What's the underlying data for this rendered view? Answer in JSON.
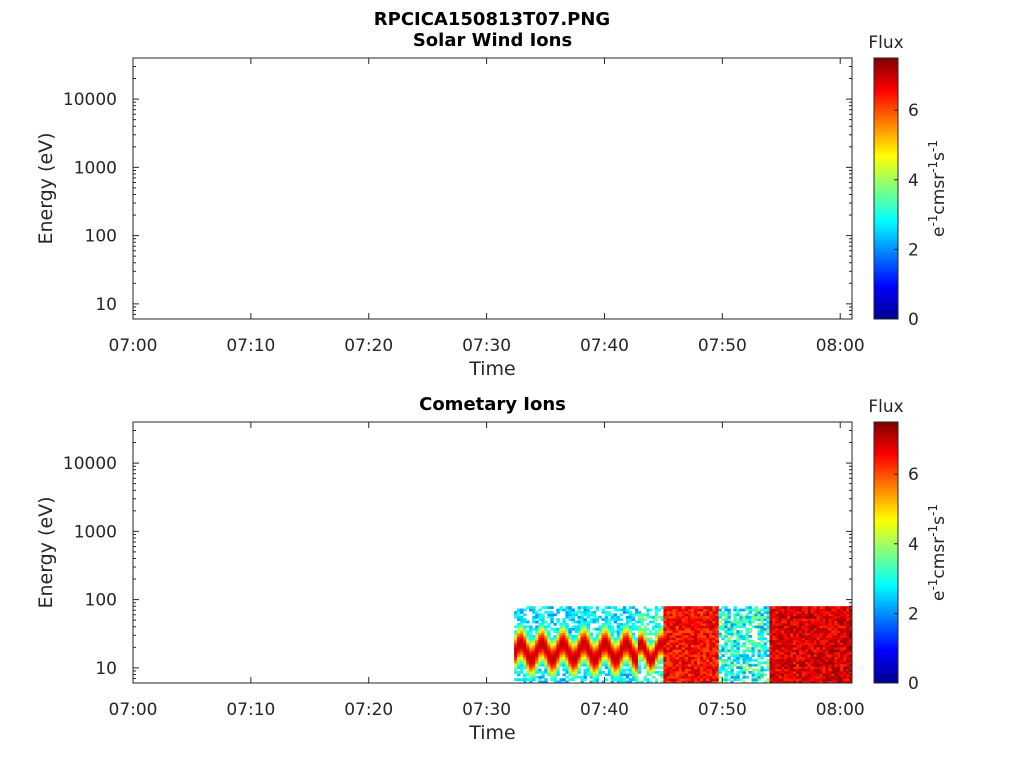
{
  "figure": {
    "title": "RPCICA150813T07.PNG"
  },
  "colormap": [
    "#00008f",
    "#0000ff",
    "#007fff",
    "#00ffff",
    "#7fff7f",
    "#ffff00",
    "#ff7f00",
    "#ff0000",
    "#7f0000"
  ],
  "chart_data": [
    {
      "type": "heatmap",
      "title": "Solar Wind Ions",
      "xlabel": "Time",
      "ylabel": "Energy (eV)",
      "x_ticks": [
        "07:00",
        "07:10",
        "07:20",
        "07:30",
        "07:40",
        "07:50",
        "08:00"
      ],
      "x_range_minutes": [
        0,
        61
      ],
      "y_scale": "log",
      "y_range": [
        6,
        40000
      ],
      "y_ticks": [
        "10",
        "100",
        "1000",
        "10000"
      ],
      "colorbar": {
        "label": "Flux",
        "unit": "eV-1cm-2sr-1s-1",
        "range": [
          0,
          7.5
        ],
        "ticks": [
          "0",
          "2",
          "4",
          "6"
        ]
      },
      "data": []
    },
    {
      "type": "heatmap",
      "title": "Cometary Ions",
      "xlabel": "Time",
      "ylabel": "Energy (eV)",
      "x_ticks": [
        "07:00",
        "07:10",
        "07:20",
        "07:30",
        "07:40",
        "07:50",
        "08:00"
      ],
      "x_range_minutes": [
        0,
        61
      ],
      "y_scale": "log",
      "y_range": [
        6,
        40000
      ],
      "y_ticks": [
        "10",
        "100",
        "1000",
        "10000"
      ],
      "colorbar": {
        "label": "Flux",
        "unit": "eV-1cm-2sr-1s-1",
        "range": [
          0,
          7.5
        ],
        "ticks": [
          "0",
          "2",
          "4",
          "6"
        ]
      },
      "data": [
        {
          "t_start": "07:32:20",
          "t_end": "07:42:50",
          "peak_energy_eV": [
            11,
            28
          ],
          "peak_flux": 7,
          "high_energy_flux": 2.5,
          "max_energy_eV": 80
        },
        {
          "t_start": "07:42:50",
          "t_end": "07:45:00",
          "peak_energy_eV": [
            12,
            25
          ],
          "peak_flux": 7,
          "high_energy_flux": 3,
          "max_energy_eV": 80
        },
        {
          "t_start": "07:45:00",
          "t_end": "07:49:40",
          "energy_eV": [
            6,
            80
          ],
          "flux": 6.5
        },
        {
          "t_start": "07:49:40",
          "t_end": "07:54:00",
          "energy_eV": [
            6,
            80
          ],
          "flux": 3
        },
        {
          "t_start": "07:54:00",
          "t_end": "08:01:00",
          "energy_eV": [
            6,
            80
          ],
          "flux": 6.8
        }
      ]
    }
  ]
}
